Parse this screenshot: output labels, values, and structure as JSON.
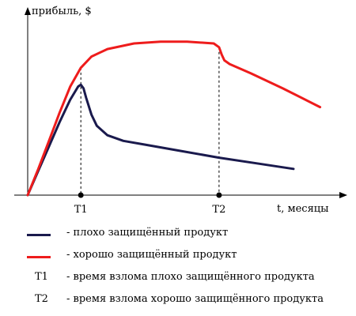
{
  "chart_data": {
    "type": "line",
    "ylabel": "прибыль, $",
    "xlabel": "t, месяцы",
    "ticks": [
      {
        "label": "T1",
        "x": 1.0
      },
      {
        "label": "T2",
        "x": 3.6
      }
    ],
    "xlim": [
      0,
      5.7
    ],
    "ylim": [
      0,
      1.0
    ],
    "grid": false,
    "series": [
      {
        "name": "плохо защищённый продукт",
        "color": "#1a1a4d",
        "x": [
          0,
          0.2,
          0.4,
          0.6,
          0.8,
          0.95,
          1.0,
          1.05,
          1.1,
          1.2,
          1.3,
          1.5,
          1.8,
          2.2,
          2.8,
          3.6,
          4.3,
          5.0
        ],
        "y": [
          0,
          0.13,
          0.26,
          0.39,
          0.51,
          0.58,
          0.59,
          0.57,
          0.52,
          0.43,
          0.37,
          0.32,
          0.29,
          0.27,
          0.24,
          0.2,
          0.17,
          0.14
        ]
      },
      {
        "name": "хорошо защищённый продукт",
        "color": "#ee1c1c",
        "x": [
          0,
          0.2,
          0.4,
          0.6,
          0.8,
          1.0,
          1.2,
          1.5,
          2.0,
          2.5,
          3.0,
          3.5,
          3.6,
          3.65,
          3.7,
          3.8,
          4.2,
          4.8,
          5.5
        ],
        "y": [
          0,
          0.14,
          0.29,
          0.44,
          0.58,
          0.68,
          0.74,
          0.78,
          0.81,
          0.82,
          0.82,
          0.81,
          0.79,
          0.75,
          0.72,
          0.7,
          0.65,
          0.57,
          0.47
        ]
      }
    ]
  },
  "legend": [
    {
      "key": "",
      "color": "#1a1a4d",
      "text": "- плохо защищённый продукт"
    },
    {
      "key": "",
      "color": "#ee1c1c",
      "text": "- хорошо защищённый продукт"
    },
    {
      "key": "T1",
      "color": "",
      "text": "- время взлома плохо защищённого продукта"
    },
    {
      "key": "T2",
      "color": "",
      "text": "- время взлома хорошо защищённого продукта"
    }
  ]
}
